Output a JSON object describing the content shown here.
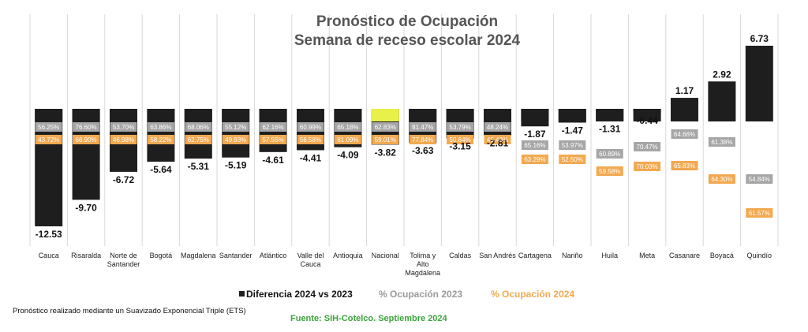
{
  "chart_data": {
    "type": "bar",
    "title": [
      "Pronóstico de Ocupación",
      "Semana de receso escolar 2024"
    ],
    "categories": [
      "Cauca",
      "Risaralda",
      "Norte de Santander",
      "Bogotá",
      "Magdalena",
      "Santander",
      "Atlántico",
      "Valle del Cauca",
      "Antioquia",
      "Nacional",
      "Tolima y Alto Magdalena",
      "Caldas",
      "San Andrés",
      "Cartagena",
      "Nariño",
      "Huila",
      "Meta",
      "Casanare",
      "Boyacá",
      "Quindío"
    ],
    "category_lines": [
      [
        "Cauca"
      ],
      [
        "Risaralda"
      ],
      [
        "Norte de",
        "Santander"
      ],
      [
        "Bogotá"
      ],
      [
        "Magdalena"
      ],
      [
        "Santander"
      ],
      [
        "Atlántico"
      ],
      [
        "Valle del",
        "Cauca"
      ],
      [
        "Antioquia"
      ],
      [
        "Nacional"
      ],
      [
        "Tolima y",
        "Alto",
        "Magdalena"
      ],
      [
        "Caldas"
      ],
      [
        "San Andrés"
      ],
      [
        "Cartagena"
      ],
      [
        "Nariño"
      ],
      [
        "Huila"
      ],
      [
        "Meta"
      ],
      [
        "Casanare"
      ],
      [
        "Boyacá"
      ],
      [
        "Quindío"
      ]
    ],
    "series": [
      {
        "name": "Diferencia 2024 vs 2023",
        "color": "#1e1e1e",
        "values": [
          -12.53,
          -9.7,
          -6.72,
          -5.64,
          -5.31,
          -5.19,
          -4.61,
          -4.41,
          -4.09,
          -3.82,
          -3.63,
          -3.15,
          -2.81,
          -1.87,
          -1.47,
          -1.31,
          -0.44,
          1.17,
          2.92,
          6.73
        ],
        "labels": [
          "-12.53",
          "-9.70",
          "-6.72",
          "-5.64",
          "-5.31",
          "-5.19",
          "-4.61",
          "-4.41",
          "-4.09",
          "-3.82",
          "-3.63",
          "-3.15",
          "-2.81",
          "-1.87",
          "-1.47",
          "-1.31",
          "-0.44",
          "1.17",
          "2.92",
          "6.73"
        ]
      },
      {
        "name": "% Ocupación 2023",
        "color": "#a6a6a6",
        "values": [
          56.25,
          76.6,
          53.7,
          63.86,
          68.06,
          55.12,
          62.16,
          60.99,
          65.18,
          62.83,
          81.47,
          53.79,
          48.24,
          65.16,
          53.97,
          60.89,
          70.47,
          64.66,
          61.38,
          54.84
        ],
        "labels": [
          "56.25%",
          "76.60%",
          "53.70%",
          "63.86%",
          "68.06%",
          "55.12%",
          "62.16%",
          "60.99%",
          "65.18%",
          "62.83%",
          "81.47%",
          "53.79%",
          "48.24%",
          "65.16%",
          "53.97%",
          "60.89%",
          "70.47%",
          "64.66%",
          "61.38%",
          "54.84%"
        ]
      },
      {
        "name": "% Ocupación 2024",
        "color": "#f2a950",
        "values": [
          43.72,
          66.9,
          46.98,
          58.22,
          62.75,
          49.93,
          57.55,
          56.58,
          61.09,
          59.01,
          77.84,
          50.64,
          45.43,
          63.29,
          52.5,
          59.58,
          70.03,
          65.83,
          64.3,
          61.57
        ],
        "labels": [
          "43.72%",
          "66.90%",
          "46.98%",
          "58.22%",
          "62.75%",
          "49.93%",
          "57.55%",
          "56.58%",
          "61.09%",
          "59.01%",
          "77.84%",
          "50.64%",
          "45.43%",
          "63.29%",
          "52.50%",
          "59.58%",
          "70.03%",
          "65.83%",
          "64.30%",
          "61.57%"
        ]
      }
    ],
    "highlight": {
      "category": "Nacional",
      "color": "#e8f04a"
    },
    "ylim": [
      -12.53,
      6.73
    ],
    "xlabel": "",
    "ylabel": "",
    "legend_position": "bottom-center"
  },
  "legend": {
    "diff": "Diferencia 2024 vs 2023",
    "occ2023": "% Ocupación 2023",
    "occ2024": "% Ocupación 2024"
  },
  "footer": {
    "note": "Pronóstico realizado mediante un Suavizado Exponencial Triple (ETS)",
    "source": "Fuente: SIH-Cotelco. Septiembre 2024"
  }
}
